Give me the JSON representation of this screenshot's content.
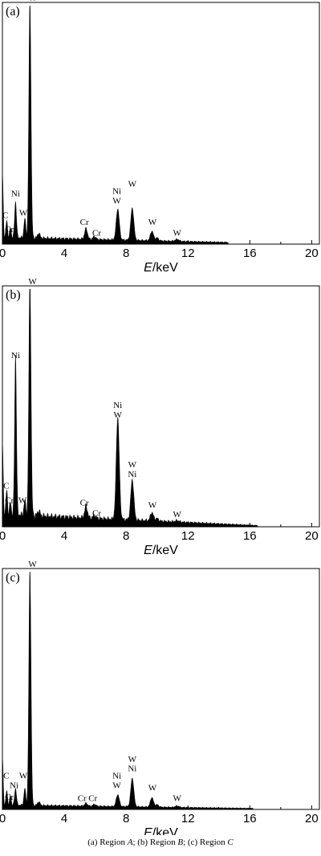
{
  "caption": {
    "part_a": "(a) Region ",
    "region_a": "A",
    "part_b": "; (b) Region ",
    "region_b": "B",
    "part_c": "; (c) Region ",
    "region_c": "C"
  },
  "chart_data": [
    {
      "type": "area",
      "panel_label": "(a)",
      "xlabel": "E/keV",
      "xlim": [
        0,
        20.5
      ],
      "x_ticks": [
        0,
        4,
        8,
        12,
        16,
        20
      ],
      "ylim": [
        0,
        1
      ],
      "grid": false,
      "background": {
        "start": 0.03,
        "end": 0.008,
        "cutoff": 14.6
      },
      "peaks": [
        {
          "x": 0.0,
          "h": 0.27,
          "w": 0.05
        },
        {
          "x": 0.28,
          "h": 0.07,
          "w": 0.05
        },
        {
          "x": 0.52,
          "h": 0.04,
          "w": 0.05
        },
        {
          "x": 0.85,
          "h": 0.15,
          "w": 0.06
        },
        {
          "x": 1.45,
          "h": 0.08,
          "w": 0.06
        },
        {
          "x": 1.78,
          "h": 1.0,
          "w": 0.07
        },
        {
          "x": 2.35,
          "h": 0.02,
          "w": 0.08
        },
        {
          "x": 5.41,
          "h": 0.045,
          "w": 0.09
        },
        {
          "x": 5.95,
          "h": 0.012,
          "w": 0.09
        },
        {
          "x": 7.46,
          "h": 0.13,
          "w": 0.1
        },
        {
          "x": 8.4,
          "h": 0.135,
          "w": 0.1
        },
        {
          "x": 9.67,
          "h": 0.04,
          "w": 0.1
        },
        {
          "x": 10.0,
          "h": 0.012,
          "w": 0.1
        },
        {
          "x": 11.3,
          "h": 0.008,
          "w": 0.12
        }
      ],
      "annotations": [
        {
          "text": "W",
          "x": 1.95,
          "y": 1.02
        },
        {
          "text": "Ni",
          "x": 0.85,
          "y": 0.2
        },
        {
          "text": "C",
          "x": 0.2,
          "y": 0.11
        },
        {
          "text": "Cr",
          "x": 0.45,
          "y": 0.05
        },
        {
          "text": "W",
          "x": 1.35,
          "y": 0.12
        },
        {
          "text": "Cr",
          "x": 5.3,
          "y": 0.08
        },
        {
          "text": "Cr",
          "x": 6.1,
          "y": 0.035
        },
        {
          "text": "Ni",
          "x": 7.4,
          "y": 0.21
        },
        {
          "text": "W",
          "x": 7.4,
          "y": 0.17
        },
        {
          "text": "W",
          "x": 8.4,
          "y": 0.24
        },
        {
          "text": "W",
          "x": 9.7,
          "y": 0.08
        },
        {
          "text": "W",
          "x": 11.3,
          "y": 0.035
        }
      ]
    },
    {
      "type": "area",
      "panel_label": "(b)",
      "xlabel": "E/keV",
      "xlim": [
        0,
        20.5
      ],
      "x_ticks": [
        0,
        4,
        8,
        12,
        16,
        20
      ],
      "ylim": [
        0,
        1
      ],
      "grid": false,
      "background": {
        "start": 0.055,
        "end": 0.006,
        "cutoff": 16.5
      },
      "peaks": [
        {
          "x": 0.0,
          "h": 0.3,
          "w": 0.05
        },
        {
          "x": 0.28,
          "h": 0.1,
          "w": 0.05
        },
        {
          "x": 0.52,
          "h": 0.05,
          "w": 0.05
        },
        {
          "x": 0.85,
          "h": 0.67,
          "w": 0.06
        },
        {
          "x": 1.45,
          "h": 0.06,
          "w": 0.06
        },
        {
          "x": 1.78,
          "h": 1.0,
          "w": 0.07
        },
        {
          "x": 2.35,
          "h": 0.02,
          "w": 0.08
        },
        {
          "x": 5.41,
          "h": 0.05,
          "w": 0.09
        },
        {
          "x": 5.95,
          "h": 0.012,
          "w": 0.09
        },
        {
          "x": 7.46,
          "h": 0.43,
          "w": 0.1
        },
        {
          "x": 8.4,
          "h": 0.17,
          "w": 0.1
        },
        {
          "x": 9.67,
          "h": 0.035,
          "w": 0.1
        },
        {
          "x": 10.0,
          "h": 0.01,
          "w": 0.1
        },
        {
          "x": 11.3,
          "h": 0.006,
          "w": 0.12
        }
      ],
      "annotations": [
        {
          "text": "W",
          "x": 1.95,
          "y": 1.02
        },
        {
          "text": "Ni",
          "x": 0.85,
          "y": 0.71
        },
        {
          "text": "C",
          "x": 0.25,
          "y": 0.16
        },
        {
          "text": "Cr",
          "x": 0.45,
          "y": 0.1
        },
        {
          "text": "W",
          "x": 1.3,
          "y": 0.1
        },
        {
          "text": "Cr",
          "x": 5.3,
          "y": 0.09
        },
        {
          "text": "Cr",
          "x": 6.1,
          "y": 0.045
        },
        {
          "text": "Ni",
          "x": 7.46,
          "y": 0.5
        },
        {
          "text": "W",
          "x": 7.46,
          "y": 0.46
        },
        {
          "text": "W",
          "x": 8.4,
          "y": 0.25
        },
        {
          "text": "Ni",
          "x": 8.4,
          "y": 0.21
        },
        {
          "text": "W",
          "x": 9.7,
          "y": 0.08
        },
        {
          "text": "W",
          "x": 11.3,
          "y": 0.04
        }
      ]
    },
    {
      "type": "area",
      "panel_label": "(c)",
      "xlabel": "E/keV",
      "xlim": [
        0,
        20.5
      ],
      "x_ticks": [
        0,
        4,
        8,
        12,
        16,
        20
      ],
      "ylim": [
        0,
        1
      ],
      "grid": false,
      "background": {
        "start": 0.02,
        "end": 0.005,
        "cutoff": 16.2
      },
      "peaks": [
        {
          "x": 0.0,
          "h": 0.2,
          "w": 0.05
        },
        {
          "x": 0.28,
          "h": 0.06,
          "w": 0.05
        },
        {
          "x": 0.52,
          "h": 0.04,
          "w": 0.05
        },
        {
          "x": 0.85,
          "h": 0.07,
          "w": 0.06
        },
        {
          "x": 1.45,
          "h": 0.07,
          "w": 0.06
        },
        {
          "x": 1.78,
          "h": 1.0,
          "w": 0.07
        },
        {
          "x": 2.35,
          "h": 0.015,
          "w": 0.08
        },
        {
          "x": 5.41,
          "h": 0.012,
          "w": 0.09
        },
        {
          "x": 5.95,
          "h": 0.008,
          "w": 0.09
        },
        {
          "x": 7.46,
          "h": 0.05,
          "w": 0.1
        },
        {
          "x": 8.4,
          "h": 0.12,
          "w": 0.1
        },
        {
          "x": 9.67,
          "h": 0.04,
          "w": 0.1
        },
        {
          "x": 10.0,
          "h": 0.01,
          "w": 0.1
        },
        {
          "x": 11.3,
          "h": 0.006,
          "w": 0.12
        }
      ],
      "annotations": [
        {
          "text": "W",
          "x": 1.95,
          "y": 1.02
        },
        {
          "text": "C",
          "x": 0.25,
          "y": 0.13
        },
        {
          "text": "Ni",
          "x": 0.75,
          "y": 0.09
        },
        {
          "text": "W",
          "x": 1.35,
          "y": 0.13
        },
        {
          "text": "Cr",
          "x": 0.45,
          "y": 0.04
        },
        {
          "text": "Cr",
          "x": 5.15,
          "y": 0.035
        },
        {
          "text": "Cr",
          "x": 5.85,
          "y": 0.035
        },
        {
          "text": "Ni",
          "x": 7.4,
          "y": 0.13
        },
        {
          "text": "W",
          "x": 7.4,
          "y": 0.09
        },
        {
          "text": "W",
          "x": 8.4,
          "y": 0.2
        },
        {
          "text": "Ni",
          "x": 8.4,
          "y": 0.16
        },
        {
          "text": "W",
          "x": 9.7,
          "y": 0.08
        },
        {
          "text": "W",
          "x": 11.3,
          "y": 0.035
        }
      ]
    }
  ]
}
